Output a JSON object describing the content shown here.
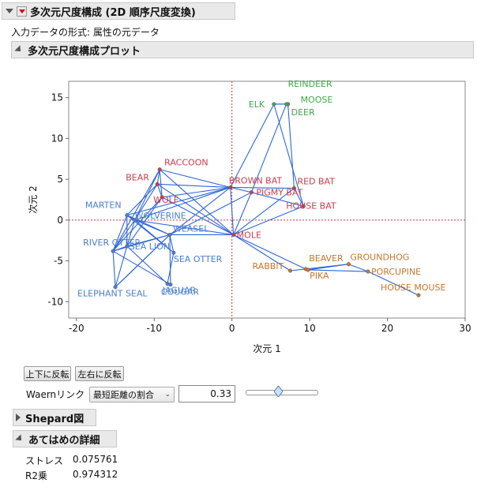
{
  "header": {
    "title": "多次元尺度構成 (2D 順序尺度変換)"
  },
  "input_format": "入力データの形式: 属性の元データ",
  "plot_section": {
    "title": "多次元尺度構成プロット"
  },
  "colors": {
    "blue": "#4a7fd0",
    "red": "#cc3b4e",
    "green": "#3fa84a",
    "orange": "#c9762b",
    "line": "#2f66d8",
    "ref": "#cc3344"
  },
  "chart_data": {
    "type": "scatter",
    "xlabel": "次元 1",
    "ylabel": "次元 2",
    "xlim": [
      -21,
      30
    ],
    "ylim": [
      -12,
      17
    ],
    "xticks": [
      "-20",
      "-10",
      "0",
      "10",
      "20",
      "30"
    ],
    "yticks": [
      "15",
      "10",
      "5",
      "0",
      "-5",
      "-10"
    ],
    "xtick_values": [
      -20,
      -10,
      0,
      10,
      20,
      30
    ],
    "ytick_values": [
      15,
      10,
      5,
      0,
      -5,
      -10
    ],
    "points": [
      {
        "label": "REINDEER",
        "x": 7.2,
        "y": 14.2,
        "group": "green"
      },
      {
        "label": "ELK",
        "x": 5.4,
        "y": 14.2,
        "group": "green"
      },
      {
        "label": "MOOSE",
        "x": 7.2,
        "y": 14.2,
        "group": "green"
      },
      {
        "label": "DEER",
        "x": 7.0,
        "y": 14.2,
        "group": "green"
      },
      {
        "label": "BEAR",
        "x": -9.6,
        "y": 4.4,
        "group": "red"
      },
      {
        "label": "RACCOON",
        "x": -9.3,
        "y": 6.2,
        "group": "red"
      },
      {
        "label": "WOLF",
        "x": -9.0,
        "y": 2.8,
        "group": "red"
      },
      {
        "label": "BROWN BAT",
        "x": -0.2,
        "y": 4.0,
        "group": "red"
      },
      {
        "label": "RED BAT",
        "x": 8.0,
        "y": 3.9,
        "group": "red"
      },
      {
        "label": "PIGMY BAT",
        "x": 2.5,
        "y": 3.4,
        "group": "red"
      },
      {
        "label": "HOUSE BAT",
        "x": 9.2,
        "y": 1.7,
        "group": "red"
      },
      {
        "label": "MOLE",
        "x": 0.2,
        "y": -1.8,
        "group": "red"
      },
      {
        "label": "MARTEN",
        "x": -13.5,
        "y": 0.6,
        "group": "blue"
      },
      {
        "label": "WOLVERINE",
        "x": -12.5,
        "y": 0.0,
        "group": "blue"
      },
      {
        "label": "RIVER OTTER",
        "x": -15.3,
        "y": -3.8,
        "group": "blue"
      },
      {
        "label": "SEA LION",
        "x": -13.5,
        "y": -3.2,
        "group": "blue"
      },
      {
        "label": "WEASEL",
        "x": -8.0,
        "y": -1.8,
        "group": "blue"
      },
      {
        "label": "SEA OTTER",
        "x": -7.5,
        "y": -4.0,
        "group": "blue"
      },
      {
        "label": "JAGUAR",
        "x": -8.3,
        "y": -7.8,
        "group": "blue"
      },
      {
        "label": "COUGAR",
        "x": -7.9,
        "y": -7.9,
        "group": "blue"
      },
      {
        "label": "ELEPHANT SEAL",
        "x": -15.0,
        "y": -8.2,
        "group": "blue"
      },
      {
        "label": "RABBIT",
        "x": 7.5,
        "y": -6.2,
        "group": "orange"
      },
      {
        "label": "BEAVER",
        "x": 9.5,
        "y": -6.0,
        "group": "orange"
      },
      {
        "label": "GROUNDHOG",
        "x": 15.0,
        "y": -5.4,
        "group": "orange"
      },
      {
        "label": "PIKA",
        "x": 9.8,
        "y": -6.1,
        "group": "orange"
      },
      {
        "label": "PORCUPINE",
        "x": 17.5,
        "y": -6.3,
        "group": "orange"
      },
      {
        "label": "HOUSE MOUSE",
        "x": 24.0,
        "y": -9.2,
        "group": "orange"
      }
    ],
    "label_offsets": [
      [
        0,
        -22
      ],
      [
        -32,
        4
      ],
      [
        16,
        -2
      ],
      [
        6,
        14
      ],
      [
        -40,
        -5
      ],
      [
        6,
        -5
      ],
      [
        -11,
        7
      ],
      [
        -2,
        -5
      ],
      [
        4,
        -5
      ],
      [
        6,
        4
      ],
      [
        -22,
        3
      ],
      [
        4,
        4
      ],
      [
        -53,
        -9
      ],
      [
        0,
        -2
      ],
      [
        -38,
        -7
      ],
      [
        3,
        4
      ],
      [
        4,
        -4
      ],
      [
        0,
        12
      ],
      [
        -6,
        12
      ],
      [
        -12,
        13
      ],
      [
        -48,
        12
      ],
      [
        -48,
        -2
      ],
      [
        4,
        -10
      ],
      [
        2,
        -5
      ],
      [
        2,
        11
      ],
      [
        4,
        4
      ],
      [
        -48,
        -6
      ]
    ],
    "edges": [
      [
        0,
        1
      ],
      [
        1,
        2
      ],
      [
        2,
        3
      ],
      [
        1,
        7
      ],
      [
        1,
        10
      ],
      [
        2,
        8
      ],
      [
        3,
        9
      ],
      [
        4,
        5
      ],
      [
        5,
        6
      ],
      [
        4,
        6
      ],
      [
        4,
        12
      ],
      [
        4,
        13
      ],
      [
        5,
        13
      ],
      [
        5,
        14
      ],
      [
        6,
        14
      ],
      [
        6,
        15
      ],
      [
        4,
        7
      ],
      [
        5,
        7
      ],
      [
        6,
        7
      ],
      [
        5,
        11
      ],
      [
        4,
        11
      ],
      [
        7,
        8
      ],
      [
        7,
        9
      ],
      [
        9,
        10
      ],
      [
        8,
        10
      ],
      [
        7,
        11
      ],
      [
        9,
        11
      ],
      [
        10,
        11
      ],
      [
        8,
        11
      ],
      [
        7,
        16
      ],
      [
        9,
        16
      ],
      [
        12,
        13
      ],
      [
        12,
        14
      ],
      [
        13,
        14
      ],
      [
        14,
        15
      ],
      [
        13,
        15
      ],
      [
        12,
        15
      ],
      [
        14,
        20
      ],
      [
        20,
        15
      ],
      [
        20,
        16
      ],
      [
        14,
        19
      ],
      [
        15,
        18
      ],
      [
        16,
        17
      ],
      [
        17,
        18
      ],
      [
        18,
        19
      ],
      [
        16,
        19
      ],
      [
        15,
        16
      ],
      [
        13,
        16
      ],
      [
        12,
        16
      ],
      [
        13,
        17
      ],
      [
        16,
        20
      ],
      [
        14,
        16
      ],
      [
        12,
        17
      ],
      [
        11,
        21
      ],
      [
        21,
        22
      ],
      [
        22,
        23
      ],
      [
        23,
        24
      ],
      [
        22,
        24
      ],
      [
        24,
        25
      ],
      [
        23,
        25
      ],
      [
        25,
        26
      ],
      [
        11,
        22
      ],
      [
        11,
        16
      ],
      [
        7,
        12
      ],
      [
        7,
        13
      ],
      [
        6,
        11
      ],
      [
        11,
        13
      ]
    ]
  },
  "controls": {
    "flip_vertical": "上下に反転",
    "flip_horizontal": "左右に反転",
    "waern_label": "Waernリンク",
    "waern_select": "最短距離の割合",
    "waern_value": "0.33",
    "slider_level": 0.45
  },
  "shepard": {
    "title": "Shepard図"
  },
  "fit": {
    "title": "あてはめの詳細",
    "stress_label": "ストレス",
    "stress_value": "0.075761",
    "r2_label": "R2乗",
    "r2_value": "0.974312"
  }
}
